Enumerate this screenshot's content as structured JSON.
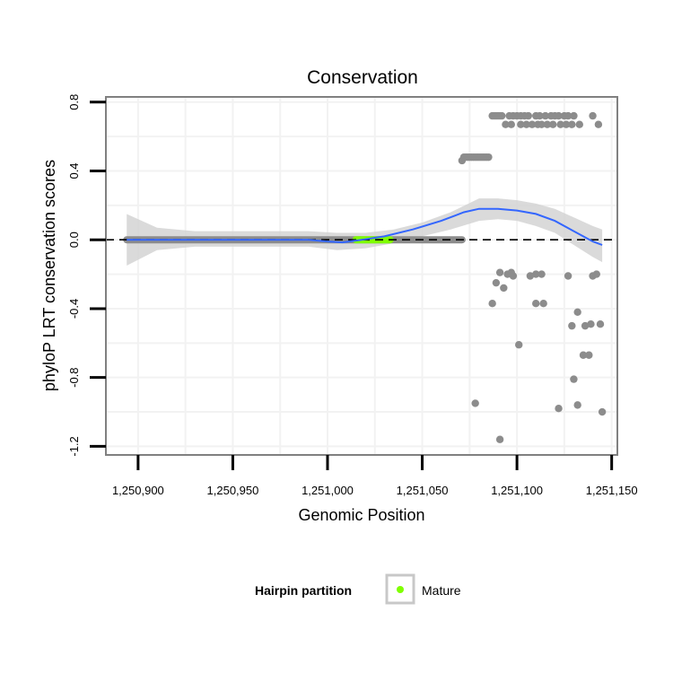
{
  "chart_data": {
    "type": "scatter",
    "title": "Conservation",
    "xlabel": "Genomic Position",
    "ylabel": "phyloP LRT conservation scores",
    "xlim": [
      1250883,
      1251153
    ],
    "ylim": [
      -1.25,
      0.83
    ],
    "x_ticks": [
      1250900,
      1250950,
      1251000,
      1251050,
      1251100,
      1251150
    ],
    "x_tick_labels": [
      "1,250,900",
      "1,250,950",
      "1,251,000",
      "1,251,050",
      "1,251,100",
      "1,251,150"
    ],
    "y_ticks": [
      0.8,
      0.4,
      0.0,
      -0.4,
      -0.8,
      -1.2
    ],
    "y_tick_labels": [
      "0.8",
      "0.4",
      "0.0",
      "-0.4",
      "-0.8",
      "-1.2"
    ],
    "grid": true,
    "reference_line": {
      "y": 0.0,
      "style": "dashed",
      "color": "#000000"
    },
    "colors": {
      "points": "#8c8c8c",
      "mature": "#7fff00",
      "smooth_line": "#3366ff",
      "ribbon": "#d4d4d4",
      "grid": "#f2f2f2",
      "panel_border": "#808080"
    },
    "legend": {
      "title": "Hairpin partition",
      "position": "bottom",
      "entries": [
        {
          "label": "Mature",
          "color": "#7fff00"
        }
      ]
    },
    "zero_segment": {
      "x_start": 1250894,
      "x_end": 1251071,
      "y": 0.0
    },
    "mature_segment": {
      "x_start": 1251015,
      "x_end": 1251033,
      "y": 0.0
    },
    "points_top": [
      [
        1251071,
        0.46
      ],
      [
        1251072,
        0.48
      ],
      [
        1251073,
        0.48
      ],
      [
        1251074,
        0.48
      ],
      [
        1251075,
        0.48
      ],
      [
        1251076,
        0.48
      ],
      [
        1251077,
        0.48
      ],
      [
        1251078,
        0.48
      ],
      [
        1251079,
        0.48
      ],
      [
        1251080,
        0.48
      ],
      [
        1251081,
        0.48
      ],
      [
        1251082,
        0.48
      ],
      [
        1251083,
        0.48
      ],
      [
        1251084,
        0.48
      ],
      [
        1251085,
        0.48
      ],
      [
        1251087,
        0.72
      ],
      [
        1251088,
        0.72
      ],
      [
        1251089,
        0.72
      ],
      [
        1251090,
        0.72
      ],
      [
        1251091,
        0.72
      ],
      [
        1251092,
        0.72
      ],
      [
        1251096,
        0.72
      ],
      [
        1251098,
        0.72
      ],
      [
        1251100,
        0.72
      ],
      [
        1251102,
        0.72
      ],
      [
        1251104,
        0.72
      ],
      [
        1251106,
        0.72
      ],
      [
        1251110,
        0.72
      ],
      [
        1251112,
        0.72
      ],
      [
        1251115,
        0.72
      ],
      [
        1251118,
        0.72
      ],
      [
        1251120,
        0.72
      ],
      [
        1251122,
        0.72
      ],
      [
        1251125,
        0.72
      ],
      [
        1251127,
        0.72
      ],
      [
        1251130,
        0.72
      ],
      [
        1251140,
        0.72
      ],
      [
        1251094,
        0.67
      ],
      [
        1251097,
        0.67
      ],
      [
        1251102,
        0.67
      ],
      [
        1251105,
        0.67
      ],
      [
        1251108,
        0.67
      ],
      [
        1251111,
        0.67
      ],
      [
        1251113,
        0.67
      ],
      [
        1251116,
        0.67
      ],
      [
        1251119,
        0.67
      ],
      [
        1251123,
        0.67
      ],
      [
        1251126,
        0.67
      ],
      [
        1251129,
        0.67
      ],
      [
        1251133,
        0.67
      ],
      [
        1251143,
        0.67
      ]
    ],
    "points_bottom": [
      [
        1251091,
        -0.19
      ],
      [
        1251095,
        -0.2
      ],
      [
        1251097,
        -0.19
      ],
      [
        1251098,
        -0.21
      ],
      [
        1251107,
        -0.21
      ],
      [
        1251110,
        -0.2
      ],
      [
        1251113,
        -0.2
      ],
      [
        1251127,
        -0.21
      ],
      [
        1251140,
        -0.21
      ],
      [
        1251142,
        -0.2
      ],
      [
        1251089,
        -0.25
      ],
      [
        1251093,
        -0.28
      ],
      [
        1251087,
        -0.37
      ],
      [
        1251110,
        -0.37
      ],
      [
        1251114,
        -0.37
      ],
      [
        1251132,
        -0.42
      ],
      [
        1251129,
        -0.5
      ],
      [
        1251136,
        -0.5
      ],
      [
        1251139,
        -0.49
      ],
      [
        1251144,
        -0.49
      ],
      [
        1251101,
        -0.61
      ],
      [
        1251135,
        -0.67
      ],
      [
        1251138,
        -0.67
      ],
      [
        1251130,
        -0.81
      ],
      [
        1251078,
        -0.95
      ],
      [
        1251132,
        -0.96
      ],
      [
        1251122,
        -0.98
      ],
      [
        1251145,
        -1.0
      ],
      [
        1251091,
        -1.16
      ]
    ],
    "smooth_curve": [
      [
        1250894,
        0.0
      ],
      [
        1250920,
        0.0
      ],
      [
        1250960,
        0.0
      ],
      [
        1250990,
        0.0
      ],
      [
        1251000,
        -0.01
      ],
      [
        1251008,
        -0.015
      ],
      [
        1251018,
        0.0
      ],
      [
        1251030,
        0.02
      ],
      [
        1251045,
        0.06
      ],
      [
        1251060,
        0.11
      ],
      [
        1251072,
        0.16
      ],
      [
        1251080,
        0.18
      ],
      [
        1251090,
        0.18
      ],
      [
        1251100,
        0.17
      ],
      [
        1251110,
        0.15
      ],
      [
        1251120,
        0.11
      ],
      [
        1251130,
        0.05
      ],
      [
        1251140,
        -0.01
      ],
      [
        1251145,
        -0.03
      ]
    ],
    "ribbon_upper": [
      [
        1250894,
        0.15
      ],
      [
        1250910,
        0.07
      ],
      [
        1250930,
        0.05
      ],
      [
        1250960,
        0.05
      ],
      [
        1250990,
        0.05
      ],
      [
        1251005,
        0.04
      ],
      [
        1251020,
        0.04
      ],
      [
        1251035,
        0.06
      ],
      [
        1251050,
        0.1
      ],
      [
        1251065,
        0.16
      ],
      [
        1251080,
        0.24
      ],
      [
        1251090,
        0.24
      ],
      [
        1251100,
        0.23
      ],
      [
        1251110,
        0.21
      ],
      [
        1251120,
        0.18
      ],
      [
        1251130,
        0.13
      ],
      [
        1251140,
        0.08
      ],
      [
        1251145,
        0.06
      ]
    ],
    "ribbon_lower": [
      [
        1250894,
        -0.15
      ],
      [
        1250910,
        -0.06
      ],
      [
        1250930,
        -0.04
      ],
      [
        1250960,
        -0.04
      ],
      [
        1250990,
        -0.04
      ],
      [
        1251005,
        -0.06
      ],
      [
        1251020,
        -0.05
      ],
      [
        1251035,
        -0.02
      ],
      [
        1251050,
        0.02
      ],
      [
        1251065,
        0.06
      ],
      [
        1251080,
        0.11
      ],
      [
        1251090,
        0.12
      ],
      [
        1251100,
        0.11
      ],
      [
        1251110,
        0.08
      ],
      [
        1251120,
        0.04
      ],
      [
        1251130,
        -0.03
      ],
      [
        1251140,
        -0.1
      ],
      [
        1251145,
        -0.13
      ]
    ]
  }
}
